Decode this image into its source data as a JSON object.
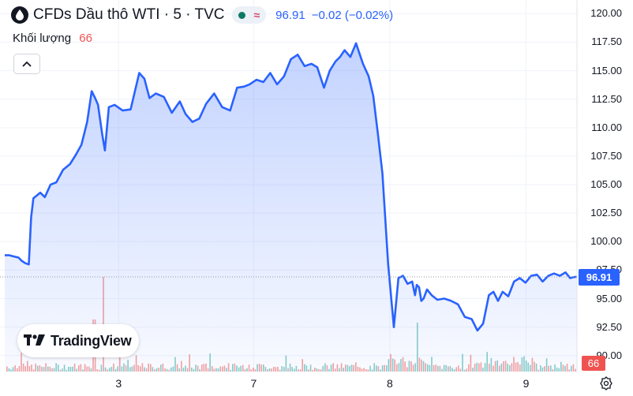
{
  "header": {
    "title": "CFDs Dầu thô WTI · 5 · TVC",
    "last_price": "96.91",
    "change": "−0.02 (−0.02%)",
    "volume_label": "Khối lượng",
    "volume_value": "66"
  },
  "logo": {
    "text": "TradingView"
  },
  "price_badge": "96.91",
  "volume_badge": "66",
  "colors": {
    "line": "#2962ff",
    "volume_up": "#26a69a",
    "volume_down": "#ef5350",
    "accent": "#2962ff"
  },
  "chart_data": {
    "type": "area",
    "ylim": [
      88.6,
      121.2
    ],
    "y_ticks": [
      "120.00",
      "117.50",
      "115.00",
      "112.50",
      "110.00",
      "107.50",
      "105.00",
      "102.50",
      "100.00",
      "97.50",
      "95.00",
      "92.50",
      "90.00"
    ],
    "x_range": [
      0,
      100
    ],
    "x_ticks": [
      {
        "label": "3",
        "x": 19.9
      },
      {
        "label": "7",
        "x": 43.5
      },
      {
        "label": "8",
        "x": 67.3
      },
      {
        "label": "9",
        "x": 91.1
      }
    ],
    "last_value": 96.91,
    "series": [
      {
        "x": [
          0.0,
          0.8,
          1.6,
          2.4,
          3.0,
          3.6,
          4.2,
          4.6,
          5.0,
          6.2,
          7.0,
          8.0,
          9.0,
          10.2,
          11.4,
          12.4,
          13.4,
          14.4,
          15.2,
          15.8,
          16.3,
          17.0,
          17.5,
          18.2,
          19.2,
          20.6,
          22.0,
          23.5,
          24.4,
          25.3,
          26.4,
          27.8,
          29.2,
          30.6,
          31.6,
          32.8,
          34.0,
          35.2,
          36.6,
          38.0,
          39.4,
          40.6,
          41.8,
          42.8,
          44.0,
          45.2,
          46.4,
          47.6,
          48.8,
          50.0,
          51.2,
          52.4,
          53.6,
          54.6,
          55.8,
          56.8,
          57.8,
          58.6,
          59.4,
          60.4,
          61.4,
          62.6,
          63.6,
          64.4,
          65.2,
          66.0,
          67.0,
          68.0,
          68.8,
          69.6,
          70.4,
          71.2,
          71.7,
          72.0,
          72.4,
          72.8,
          73.2,
          73.8,
          74.6,
          75.6,
          76.8,
          78.0,
          79.2,
          80.4,
          81.6,
          82.6,
          83.6,
          84.6,
          85.4,
          86.2,
          87.0,
          88.0,
          89.0,
          90.0,
          91.0,
          92.0,
          93.0,
          94.0,
          95.0,
          96.0,
          97.0,
          98.0,
          98.8,
          99.6,
          100.0
        ],
        "values": [
          98.8,
          98.8,
          98.7,
          98.6,
          98.3,
          98.1,
          98.0,
          102.1,
          103.8,
          104.3,
          103.9,
          105.0,
          105.2,
          106.3,
          106.8,
          107.6,
          108.5,
          110.5,
          113.2,
          112.6,
          112.0,
          109.5,
          108.0,
          111.8,
          112.0,
          111.5,
          111.6,
          114.8,
          114.3,
          112.6,
          113.0,
          112.7,
          111.3,
          112.3,
          111.2,
          110.5,
          110.8,
          112.1,
          113.0,
          111.8,
          111.5,
          113.5,
          113.6,
          113.8,
          114.2,
          114.0,
          114.8,
          113.8,
          114.5,
          116.0,
          116.4,
          115.4,
          115.6,
          115.3,
          113.5,
          115.0,
          115.8,
          116.2,
          116.8,
          116.2,
          117.4,
          115.6,
          114.5,
          112.8,
          109.5,
          106.0,
          98.0,
          92.5,
          96.8,
          97.0,
          96.3,
          96.5,
          95.3,
          96.2,
          96.0,
          94.8,
          95.0,
          95.8,
          95.3,
          94.9,
          95.0,
          94.8,
          94.5,
          93.4,
          93.2,
          92.2,
          92.8,
          95.3,
          95.6,
          94.8,
          95.6,
          95.2,
          96.5,
          96.8,
          96.4,
          97.0,
          97.1,
          96.5,
          97.0,
          97.2,
          97.0,
          97.3,
          96.8,
          96.9,
          96.91
        ]
      }
    ]
  }
}
